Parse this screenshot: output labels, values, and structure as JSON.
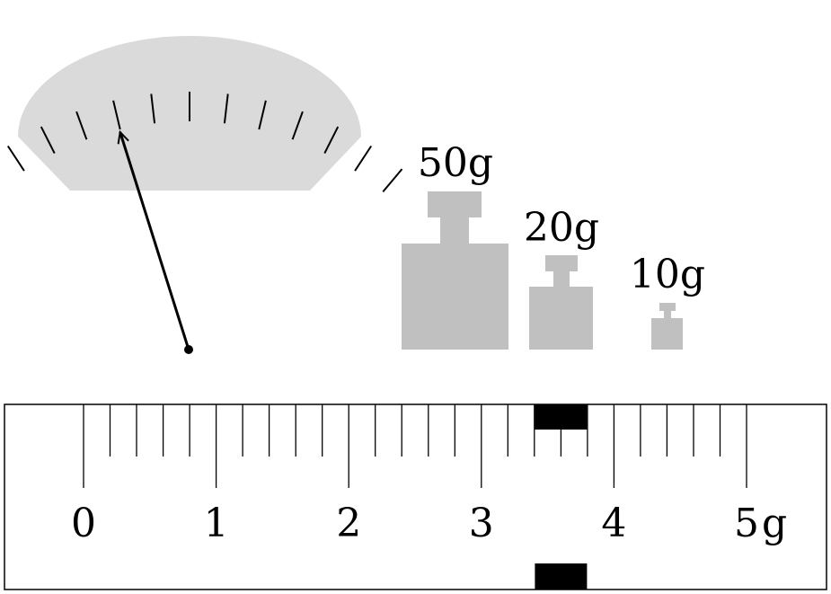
{
  "colors": {
    "dial_face": "#dadada",
    "weight_fill": "#c0c0c0",
    "ink": "#000000",
    "background": "#ffffff"
  },
  "weights": [
    {
      "label": "50g"
    },
    {
      "label": "20g"
    },
    {
      "label": "10g"
    }
  ],
  "rider_scale": {
    "major_labels": [
      "0",
      "1",
      "2",
      "3",
      "4",
      "5"
    ],
    "unit": "g",
    "rider_position_g": 3.6
  },
  "dial": {
    "tick_count": 13,
    "pointer_tick_index": 4
  }
}
